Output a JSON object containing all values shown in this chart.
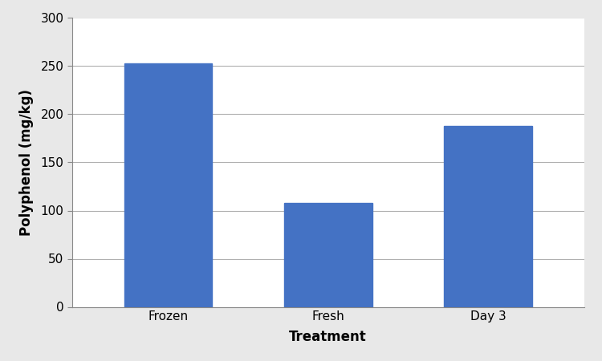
{
  "categories": [
    "Frozen",
    "Fresh",
    "Day 3"
  ],
  "values": [
    253,
    108,
    188
  ],
  "bar_color": "#4472C4",
  "xlabel": "Treatment",
  "ylabel": "Polyphenol (mg/kg)",
  "ylim": [
    0,
    300
  ],
  "yticks": [
    0,
    50,
    100,
    150,
    200,
    250,
    300
  ],
  "xlabel_fontsize": 12,
  "ylabel_fontsize": 12,
  "xlabel_fontweight": "bold",
  "ylabel_fontweight": "bold",
  "tick_fontsize": 11,
  "bar_width": 0.55,
  "background_color": "#e8e8e8",
  "plot_background_color": "#ffffff",
  "grid_color": "#b0b0b0",
  "grid_linewidth": 0.8,
  "spine_color": "#888888"
}
